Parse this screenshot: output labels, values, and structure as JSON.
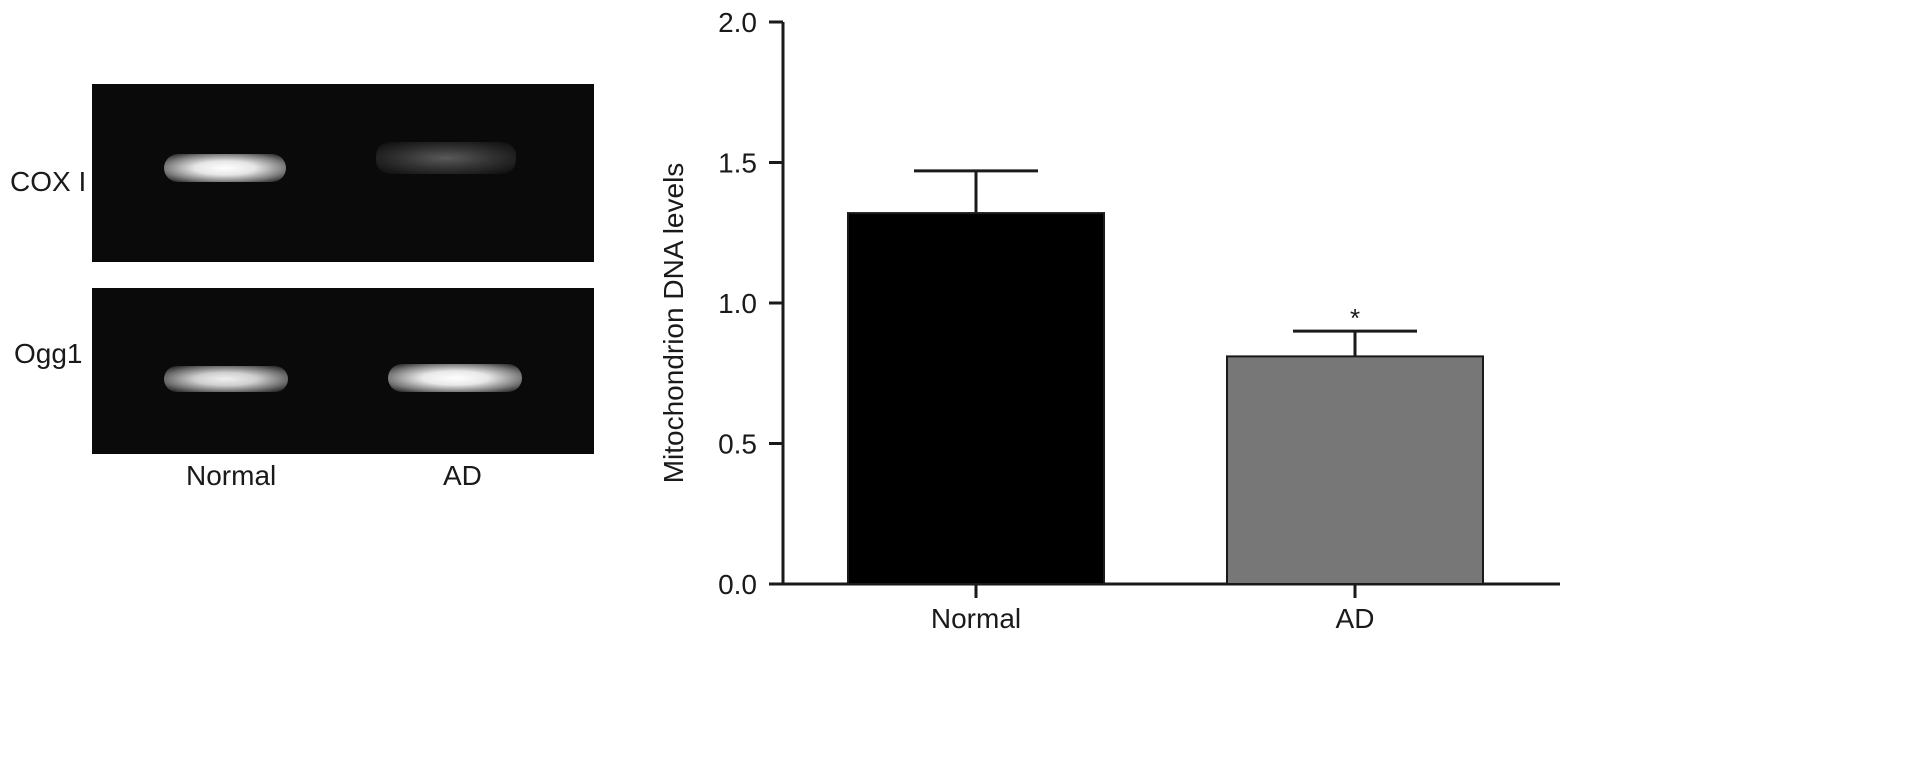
{
  "gel": {
    "rows": [
      {
        "label": "COX I",
        "bands": [
          {
            "lane": "Normal",
            "intensity": "strong"
          },
          {
            "lane": "AD",
            "intensity": "faint"
          }
        ]
      },
      {
        "label": "Ogg1",
        "bands": [
          {
            "lane": "Normal",
            "intensity": "strong"
          },
          {
            "lane": "AD",
            "intensity": "strong"
          }
        ]
      }
    ],
    "lane_labels": [
      "Normal",
      "AD"
    ]
  },
  "chart_data": {
    "type": "bar",
    "title": "",
    "xlabel": "",
    "ylabel": "Mitochondrion DNA levels",
    "categories": [
      "Normal",
      "AD"
    ],
    "values": [
      1.32,
      0.81
    ],
    "errors": [
      0.15,
      0.09
    ],
    "bar_colors": [
      "#000000",
      "#777777"
    ],
    "significance": [
      "",
      "*"
    ],
    "ylim": [
      0.0,
      2.0
    ],
    "yticks": [
      "0.0",
      "0.5",
      "1.0",
      "1.5",
      "2.0"
    ],
    "grid": false
  }
}
